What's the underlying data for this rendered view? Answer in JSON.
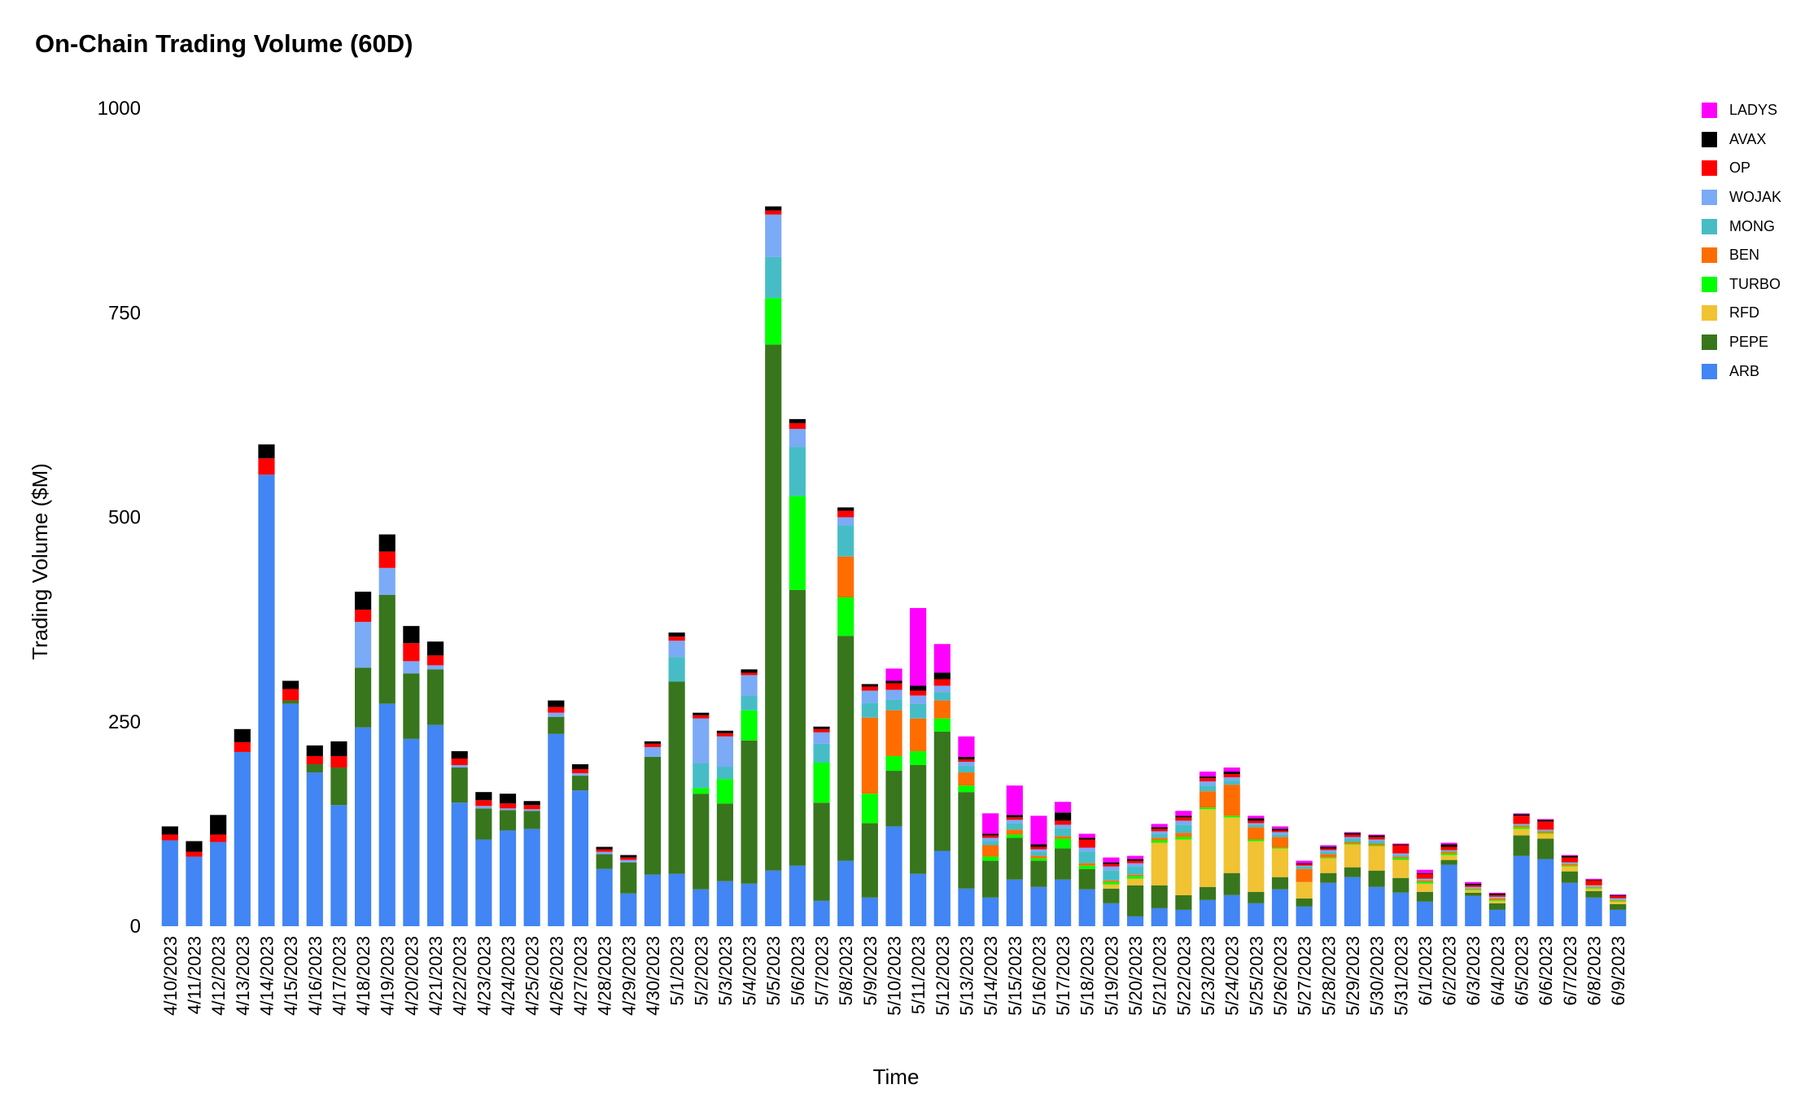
{
  "chart_data": {
    "type": "bar",
    "stacked": true,
    "title": "On-Chain Trading Volume (60D)",
    "xlabel": "Time",
    "ylabel": "Trading Volume ($M)",
    "ylim": [
      0,
      1000
    ],
    "yticks": [
      0,
      250,
      500,
      750,
      1000
    ],
    "legend_position": "top-right",
    "grid": false,
    "categories": [
      "4/10/2023",
      "4/11/2023",
      "4/12/2023",
      "4/13/2023",
      "4/14/2023",
      "4/15/2023",
      "4/16/2023",
      "4/17/2023",
      "4/18/2023",
      "4/19/2023",
      "4/20/2023",
      "4/21/2023",
      "4/22/2023",
      "4/23/2023",
      "4/24/2023",
      "4/25/2023",
      "4/26/2023",
      "4/27/2023",
      "4/28/2023",
      "4/29/2023",
      "4/30/2023",
      "5/1/2023",
      "5/2/2023",
      "5/3/2023",
      "5/4/2023",
      "5/5/2023",
      "5/6/2023",
      "5/7/2023",
      "5/8/2023",
      "5/9/2023",
      "5/10/2023",
      "5/11/2023",
      "5/12/2023",
      "5/13/2023",
      "5/14/2023",
      "5/15/2023",
      "5/16/2023",
      "5/17/2023",
      "5/18/2023",
      "5/19/2023",
      "5/20/2023",
      "5/21/2023",
      "5/22/2023",
      "5/23/2023",
      "5/24/2023",
      "5/25/2023",
      "5/26/2023",
      "5/27/2023",
      "5/28/2023",
      "5/29/2023",
      "5/30/2023",
      "5/31/2023",
      "6/1/2023",
      "6/2/2023",
      "6/3/2023",
      "6/4/2023",
      "6/5/2023",
      "6/6/2023",
      "6/7/2023",
      "6/8/2023",
      "6/9/2023"
    ],
    "series": [
      {
        "name": "ARB",
        "color": "#4285f4",
        "values": [
          105,
          85,
          103,
          213,
          552,
          272,
          188,
          148,
          243,
          272,
          229,
          246,
          151,
          106,
          117,
          119,
          235,
          166,
          70,
          40,
          63,
          64,
          45,
          55,
          52,
          68,
          74,
          31,
          80,
          35,
          122,
          64,
          92,
          46,
          35,
          57,
          48,
          57,
          45,
          28,
          12,
          22,
          20,
          32,
          38,
          28,
          45,
          24,
          53,
          60,
          48,
          41,
          30,
          75,
          37,
          20,
          86,
          82,
          53,
          35,
          20
        ]
      },
      {
        "name": "PEPE",
        "color": "#38761d",
        "values": [
          0,
          0,
          0,
          0,
          0,
          4,
          10,
          46,
          73,
          133,
          80,
          68,
          43,
          38,
          25,
          22,
          21,
          18,
          18,
          38,
          144,
          235,
          117,
          95,
          175,
          643,
          337,
          120,
          275,
          91,
          68,
          133,
          146,
          118,
          45,
          51,
          32,
          38,
          25,
          18,
          38,
          28,
          18,
          16,
          27,
          14,
          15,
          10,
          12,
          12,
          20,
          18,
          12,
          6,
          4,
          8,
          25,
          25,
          14,
          8,
          7
        ]
      },
      {
        "name": "RFD",
        "color": "#f1c232",
        "values": [
          0,
          0,
          0,
          0,
          0,
          0,
          0,
          0,
          0,
          0,
          0,
          0,
          0,
          0,
          0,
          0,
          0,
          0,
          0,
          0,
          0,
          0,
          0,
          0,
          0,
          0,
          0,
          0,
          0,
          0,
          0,
          0,
          0,
          0,
          0,
          0,
          0,
          0,
          0,
          5,
          8,
          52,
          68,
          95,
          68,
          62,
          35,
          20,
          18,
          28,
          30,
          22,
          10,
          6,
          3,
          3,
          8,
          6,
          6,
          3,
          3
        ]
      },
      {
        "name": "TURBO",
        "color": "#00ff00",
        "values": [
          0,
          0,
          0,
          0,
          0,
          0,
          0,
          0,
          0,
          0,
          0,
          0,
          0,
          0,
          0,
          0,
          0,
          0,
          0,
          0,
          0,
          0,
          7,
          30,
          37,
          57,
          115,
          49,
          47,
          36,
          18,
          17,
          16,
          8,
          5,
          4,
          3,
          12,
          4,
          3,
          3,
          3,
          3,
          2,
          2,
          2,
          1,
          0,
          1,
          1,
          1,
          2,
          2,
          2,
          1,
          1,
          2,
          1,
          1,
          1,
          1
        ]
      },
      {
        "name": "BEN",
        "color": "#ff6d01",
        "values": [
          0,
          0,
          0,
          0,
          0,
          0,
          0,
          0,
          0,
          0,
          0,
          0,
          0,
          0,
          0,
          0,
          0,
          0,
          0,
          0,
          0,
          0,
          0,
          0,
          0,
          0,
          0,
          0,
          50,
          93,
          56,
          40,
          22,
          16,
          14,
          6,
          3,
          3,
          3,
          2,
          2,
          3,
          5,
          20,
          38,
          15,
          13,
          16,
          4,
          2,
          2,
          2,
          2,
          2,
          1,
          2,
          2,
          2,
          2,
          1,
          1
        ]
      },
      {
        "name": "MONG",
        "color": "#46bdc6",
        "values": [
          0,
          0,
          0,
          0,
          0,
          0,
          0,
          0,
          0,
          0,
          0,
          0,
          0,
          0,
          0,
          0,
          0,
          0,
          0,
          0,
          0,
          30,
          30,
          15,
          18,
          50,
          60,
          23,
          38,
          18,
          13,
          18,
          10,
          8,
          5,
          8,
          5,
          10,
          14,
          12,
          10,
          5,
          10,
          7,
          5,
          3,
          3,
          3,
          3,
          4,
          3,
          2,
          1,
          1,
          1,
          1,
          1,
          1,
          1,
          1,
          1
        ]
      },
      {
        "name": "WOJAK",
        "color": "#7baaf7",
        "values": [
          0,
          0,
          0,
          0,
          0,
          0,
          0,
          0,
          56,
          33,
          15,
          5,
          3,
          3,
          2,
          2,
          5,
          3,
          3,
          3,
          12,
          20,
          55,
          37,
          25,
          52,
          22,
          14,
          10,
          15,
          12,
          10,
          8,
          5,
          4,
          4,
          3,
          4,
          5,
          5,
          4,
          3,
          5,
          5,
          4,
          2,
          3,
          1,
          2,
          2,
          2,
          2,
          1,
          1,
          1,
          1,
          1,
          1,
          1,
          1,
          1
        ]
      },
      {
        "name": "OP",
        "color": "#ff0000",
        "values": [
          7,
          6,
          9,
          12,
          20,
          14,
          10,
          14,
          15,
          20,
          22,
          12,
          8,
          7,
          6,
          5,
          7,
          5,
          3,
          3,
          4,
          5,
          4,
          4,
          3,
          5,
          7,
          4,
          8,
          5,
          8,
          6,
          8,
          3,
          3,
          3,
          3,
          5,
          10,
          3,
          3,
          3,
          4,
          4,
          4,
          3,
          2,
          2,
          2,
          3,
          3,
          10,
          6,
          4,
          2,
          2,
          10,
          10,
          6,
          6,
          3
        ]
      },
      {
        "name": "AVAX",
        "color": "#000000",
        "values": [
          10,
          13,
          24,
          16,
          17,
          10,
          13,
          18,
          22,
          21,
          21,
          17,
          9,
          10,
          12,
          5,
          8,
          6,
          3,
          3,
          3,
          5,
          3,
          3,
          4,
          5,
          5,
          3,
          4,
          3,
          3,
          6,
          8,
          3,
          2,
          3,
          3,
          10,
          2,
          2,
          2,
          2,
          2,
          2,
          3,
          3,
          2,
          1,
          2,
          2,
          2,
          1,
          1,
          3,
          2,
          2,
          2,
          2,
          2,
          1,
          1
        ]
      },
      {
        "name": "LADYS",
        "color": "#ff00ff",
        "values": [
          0,
          0,
          0,
          0,
          0,
          0,
          0,
          0,
          0,
          0,
          0,
          0,
          0,
          0,
          0,
          0,
          0,
          0,
          0,
          0,
          0,
          0,
          0,
          0,
          0,
          0,
          0,
          0,
          0,
          0,
          15,
          95,
          35,
          25,
          25,
          36,
          35,
          13,
          5,
          6,
          4,
          4,
          6,
          6,
          5,
          3,
          3,
          3,
          2,
          1,
          1,
          1,
          4,
          2,
          2,
          1,
          1,
          1,
          1,
          1,
          1
        ]
      }
    ]
  }
}
